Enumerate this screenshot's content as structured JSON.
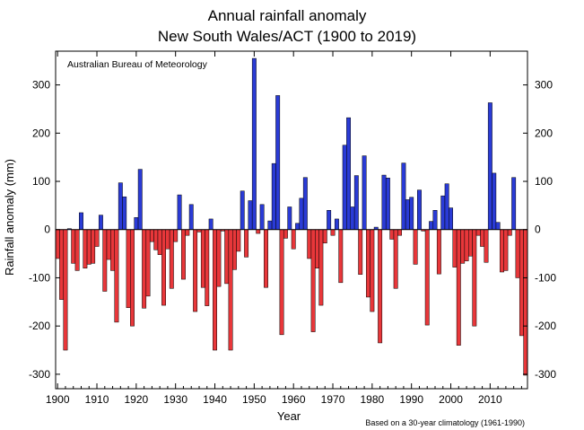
{
  "chart_data": {
    "type": "bar",
    "title": "Annual rainfall anomaly",
    "subtitle": "New South Wales/ACT (1900 to 2019)",
    "xlabel": "Year",
    "ylabel": "Rainfall anomaly (mm)",
    "source_label": "Australian Bureau of Meteorology",
    "footnote": "Based on a 30-year climatology (1961-1990)",
    "ylim": [
      -330,
      370
    ],
    "xlim": [
      1899.5,
      2019.5
    ],
    "y_ticks": [
      -300,
      -200,
      -100,
      0,
      100,
      200,
      300
    ],
    "x_ticks": [
      1900,
      1910,
      1920,
      1930,
      1940,
      1950,
      1960,
      1970,
      1980,
      1990,
      2000,
      2010
    ],
    "grid": false,
    "colors": {
      "positive": "#2a3bd6",
      "negative": "#e8373a",
      "edge": "#000000"
    },
    "x": [
      1900,
      1901,
      1902,
      1903,
      1904,
      1905,
      1906,
      1907,
      1908,
      1909,
      1910,
      1911,
      1912,
      1913,
      1914,
      1915,
      1916,
      1917,
      1918,
      1919,
      1920,
      1921,
      1922,
      1923,
      1924,
      1925,
      1926,
      1927,
      1928,
      1929,
      1930,
      1931,
      1932,
      1933,
      1934,
      1935,
      1936,
      1937,
      1938,
      1939,
      1940,
      1941,
      1942,
      1943,
      1944,
      1945,
      1946,
      1947,
      1948,
      1949,
      1950,
      1951,
      1952,
      1953,
      1954,
      1955,
      1956,
      1957,
      1958,
      1959,
      1960,
      1961,
      1962,
      1963,
      1964,
      1965,
      1966,
      1967,
      1968,
      1969,
      1970,
      1971,
      1972,
      1973,
      1974,
      1975,
      1976,
      1977,
      1978,
      1979,
      1980,
      1981,
      1982,
      1983,
      1984,
      1985,
      1986,
      1987,
      1988,
      1989,
      1990,
      1991,
      1992,
      1993,
      1994,
      1995,
      1996,
      1997,
      1998,
      1999,
      2000,
      2001,
      2002,
      2003,
      2004,
      2005,
      2006,
      2007,
      2008,
      2009,
      2010,
      2011,
      2012,
      2013,
      2014,
      2015,
      2016,
      2017,
      2018,
      2019
    ],
    "values": [
      -60,
      -145,
      -250,
      2,
      -70,
      -85,
      35,
      -80,
      -72,
      -70,
      -35,
      30,
      -128,
      -62,
      -85,
      -192,
      97,
      68,
      -162,
      -200,
      25,
      125,
      -163,
      -138,
      -25,
      -42,
      -52,
      -157,
      -40,
      -122,
      -25,
      72,
      -103,
      -12,
      52,
      -170,
      -5,
      -120,
      -158,
      22,
      -250,
      -118,
      -3,
      -112,
      -250,
      -83,
      -45,
      80,
      -57,
      60,
      355,
      -8,
      52,
      -120,
      18,
      137,
      278,
      -218,
      -18,
      47,
      -40,
      13,
      65,
      108,
      -60,
      -212,
      -80,
      -157,
      -28,
      40,
      -12,
      22,
      -110,
      175,
      232,
      47,
      112,
      -93,
      153,
      -140,
      -170,
      5,
      -235,
      113,
      107,
      -20,
      -122,
      -12,
      138,
      62,
      67,
      -72,
      82,
      -3,
      -198,
      17,
      40,
      -92,
      70,
      95,
      45,
      -78,
      -240,
      -70,
      -65,
      -55,
      -200,
      -12,
      -35,
      -68,
      263,
      117,
      15,
      -88,
      -85,
      -12,
      108,
      -100,
      -220,
      -302
    ]
  }
}
